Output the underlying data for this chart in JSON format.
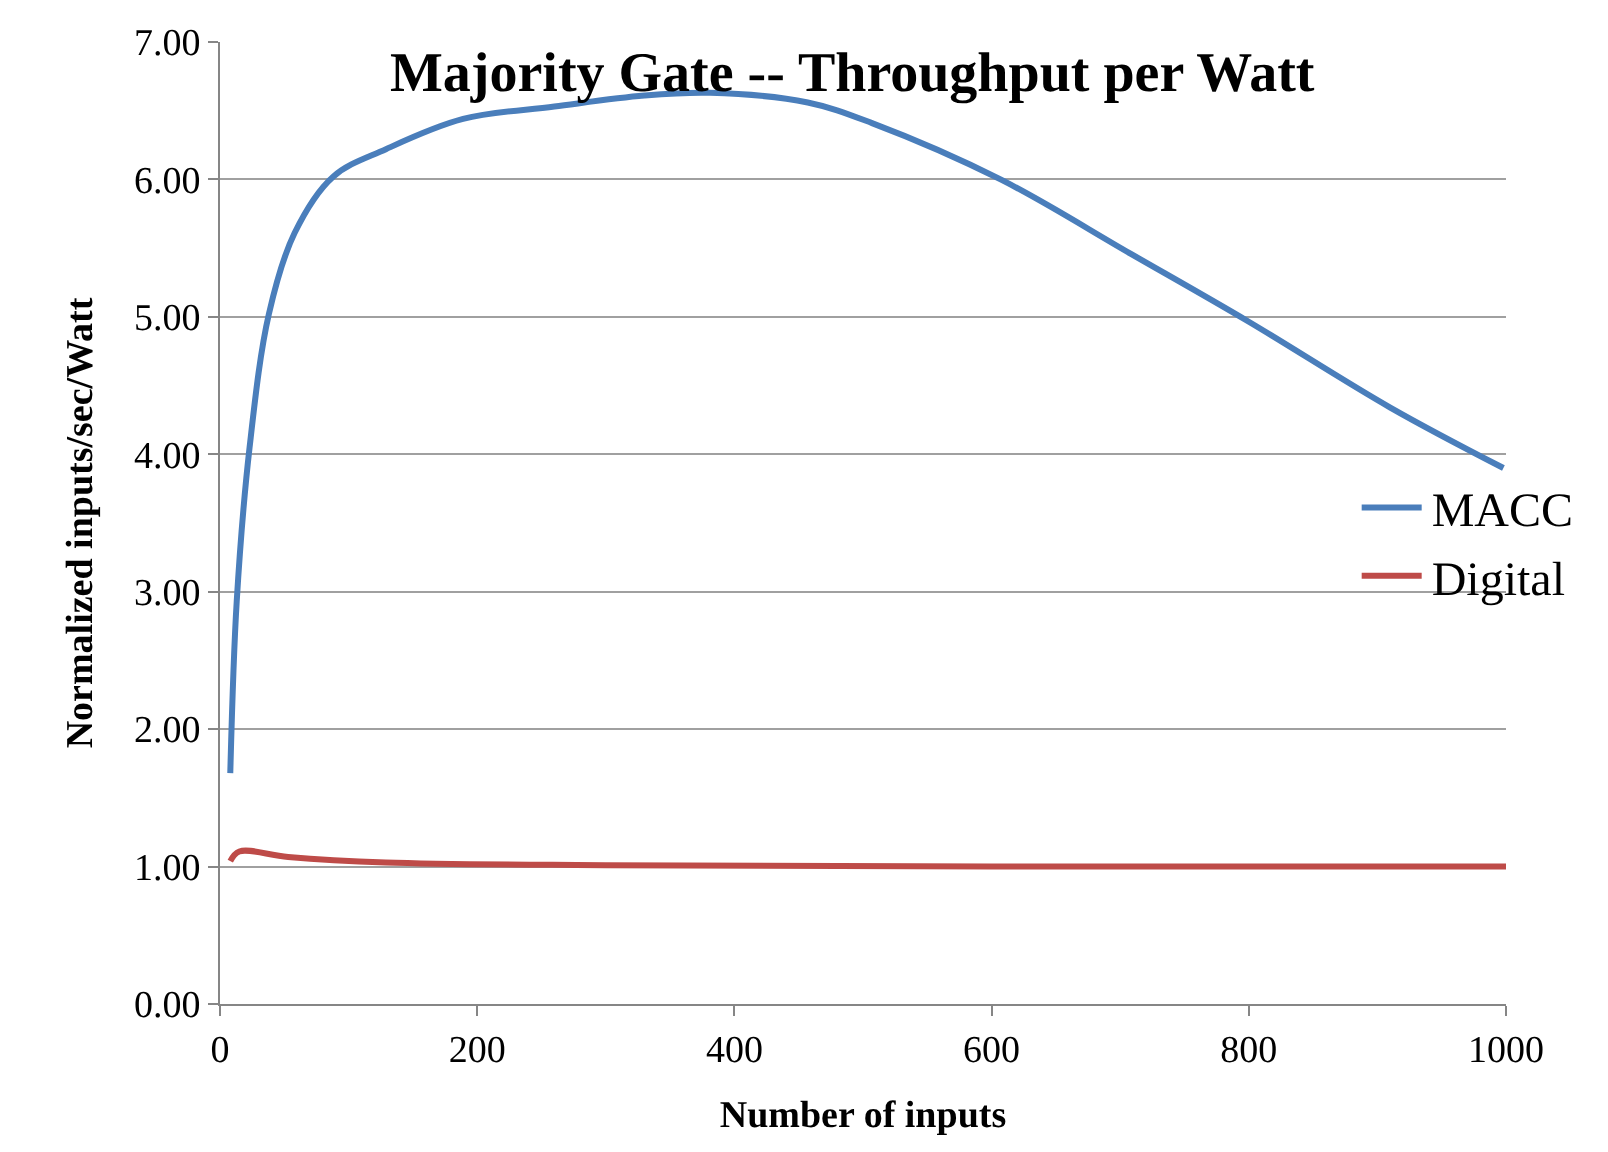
{
  "chart_data": {
    "type": "line",
    "title": "Majority Gate -- Throughput per Watt",
    "xlabel": "Number of inputs",
    "ylabel": "Normalized inputs/sec/Watt",
    "series": [
      {
        "name": "MACC",
        "color": "#4a7ebb",
        "x": [
          8,
          13,
          23,
          38,
          58,
          88,
          129,
          189,
          260,
          330,
          381,
          457,
          507,
          607,
          708,
          799,
          910,
          998
        ],
        "values": [
          1.68,
          2.93,
          4.05,
          5.02,
          5.61,
          6.02,
          6.22,
          6.44,
          6.53,
          6.61,
          6.63,
          6.56,
          6.41,
          6.0,
          5.46,
          4.97,
          4.34,
          3.9
        ]
      },
      {
        "name": "Digital",
        "color": "#be4b48",
        "x": [
          8,
          15,
          53,
          129,
          300,
          600,
          1000
        ],
        "values": [
          1.04,
          1.11,
          1.07,
          1.03,
          1.01,
          1.0,
          1.0
        ]
      }
    ],
    "xlim": [
      0,
      1000
    ],
    "xticks": [
      0,
      200,
      400,
      600,
      800,
      1000
    ],
    "ylim": [
      0,
      7
    ],
    "yticks": [
      {
        "value": 0,
        "label": "0.00"
      },
      {
        "value": 1,
        "label": "1.00"
      },
      {
        "value": 2,
        "label": "2.00"
      },
      {
        "value": 3,
        "label": "3.00"
      },
      {
        "value": 4,
        "label": "4.00"
      },
      {
        "value": 5,
        "label": "5.00"
      },
      {
        "value": 6,
        "label": "6.00"
      },
      {
        "value": 7,
        "label": "7.00"
      }
    ],
    "grid": "y",
    "legend": "right",
    "marker": "none",
    "line_style": "solid"
  }
}
